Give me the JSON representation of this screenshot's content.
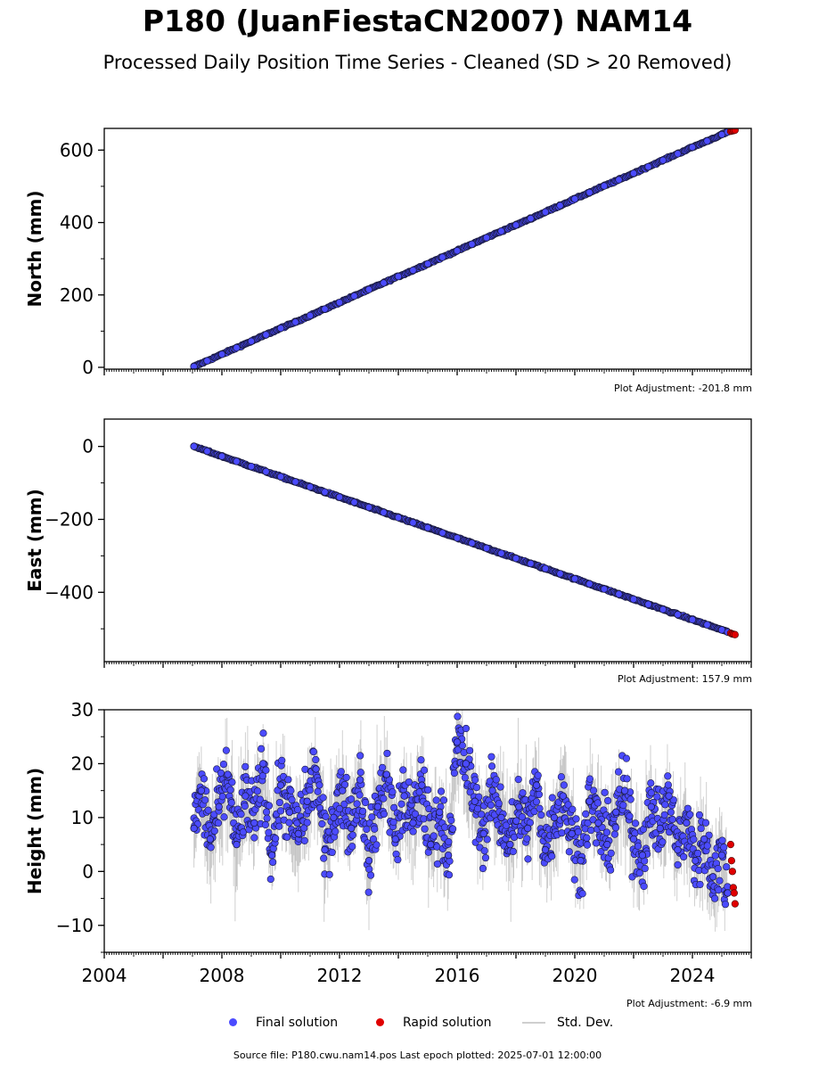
{
  "title": "P180 (JuanFiestaCN2007) NAM14",
  "subtitle": "Processed Daily Position Time Series - Cleaned (SD > 20 Removed)",
  "source_text": "Source file: P180.cwu.nam14.pos  Last epoch plotted: 2025-07-01 12:00:00",
  "legend": {
    "final_label": "Final solution",
    "rapid_label": "Rapid solution",
    "std_label": "Std. Dev."
  },
  "colors": {
    "final": "#4b4bff",
    "final_edge": "#1a1a40",
    "rapid": "#e00000",
    "std": "#c8c8c8"
  },
  "chart_data": [
    {
      "type": "scatter",
      "ylabel": "North (mm)",
      "plot_adjustment": "Plot Adjustment: -201.8 mm",
      "xlim": [
        2004.0,
        2026.0
      ],
      "ylim": [
        -5,
        660
      ],
      "yticks": [
        0,
        200,
        400,
        600
      ],
      "ytick_labels": [
        "0",
        "200",
        "400",
        "600"
      ],
      "show_xtick_labels": false,
      "series": [
        {
          "name": "Final solution",
          "x": [
            2007.05,
            2007.5,
            2008.0,
            2008.5,
            2009.0,
            2009.5,
            2010.0,
            2010.5,
            2011.0,
            2011.5,
            2012.0,
            2012.5,
            2013.0,
            2013.5,
            2014.0,
            2014.5,
            2015.0,
            2015.5,
            2016.0,
            2016.5,
            2017.0,
            2017.5,
            2018.0,
            2018.5,
            2019.0,
            2019.5,
            2020.0,
            2020.5,
            2021.0,
            2021.5,
            2022.0,
            2022.5,
            2023.0,
            2023.5,
            2024.0,
            2024.5,
            2025.0,
            2025.2
          ],
          "y": [
            2,
            18,
            36,
            54,
            72,
            90,
            108,
            125,
            143,
            161,
            179,
            197,
            215,
            233,
            251,
            268,
            286,
            304,
            322,
            340,
            358,
            376,
            393,
            411,
            429,
            447,
            465,
            483,
            501,
            518,
            536,
            554,
            572,
            590,
            608,
            625,
            643,
            650
          ]
        },
        {
          "name": "Rapid solution",
          "x": [
            2025.3,
            2025.35,
            2025.4,
            2025.45
          ],
          "y": [
            652,
            653,
            654,
            655
          ]
        }
      ]
    },
    {
      "type": "scatter",
      "ylabel": "East (mm)",
      "plot_adjustment": "Plot Adjustment: 157.9 mm",
      "xlim": [
        2004.0,
        2026.0
      ],
      "ylim": [
        -590,
        75
      ],
      "yticks": [
        0,
        -200,
        -400
      ],
      "ytick_labels": [
        "0",
        "−200",
        "−400"
      ],
      "show_xtick_labels": false,
      "series": [
        {
          "name": "Final solution",
          "x": [
            2007.05,
            2007.5,
            2008.0,
            2008.5,
            2009.0,
            2009.5,
            2010.0,
            2010.5,
            2011.0,
            2011.5,
            2012.0,
            2012.5,
            2013.0,
            2013.5,
            2014.0,
            2014.5,
            2015.0,
            2015.5,
            2016.0,
            2016.5,
            2017.0,
            2017.5,
            2018.0,
            2018.5,
            2019.0,
            2019.5,
            2020.0,
            2020.5,
            2021.0,
            2021.5,
            2022.0,
            2022.5,
            2023.0,
            2023.5,
            2024.0,
            2024.5,
            2025.0,
            2025.2
          ],
          "y": [
            0,
            -13,
            -27,
            -41,
            -55,
            -69,
            -83,
            -97,
            -111,
            -125,
            -139,
            -153,
            -167,
            -181,
            -195,
            -209,
            -223,
            -237,
            -251,
            -265,
            -279,
            -293,
            -307,
            -321,
            -335,
            -349,
            -363,
            -377,
            -391,
            -405,
            -419,
            -433,
            -447,
            -461,
            -475,
            -489,
            -503,
            -509
          ]
        },
        {
          "name": "Rapid solution",
          "x": [
            2025.3,
            2025.35,
            2025.4,
            2025.45
          ],
          "y": [
            -512,
            -514,
            -515,
            -516
          ]
        }
      ]
    },
    {
      "type": "scatter",
      "ylabel": "Height (mm)",
      "plot_adjustment": "Plot Adjustment: -6.9 mm",
      "xlim": [
        2004.0,
        2026.0
      ],
      "ylim": [
        -15,
        30
      ],
      "yticks": [
        30,
        20,
        10,
        0,
        -10
      ],
      "ytick_labels": [
        "30",
        "20",
        "10",
        "0",
        "−10"
      ],
      "show_xtick_labels": true,
      "xticks": [
        2004,
        2008,
        2012,
        2016,
        2020,
        2024
      ],
      "xtick_labels": [
        "2004",
        "2008",
        "2012",
        "2016",
        "2020",
        "2024"
      ],
      "series": [
        {
          "name": "Final solution",
          "x": [
            2007.05,
            2007.3,
            2007.6,
            2007.9,
            2008.2,
            2008.5,
            2008.8,
            2009.1,
            2009.4,
            2009.7,
            2010.0,
            2010.3,
            2010.6,
            2010.9,
            2011.2,
            2011.5,
            2011.8,
            2012.1,
            2012.4,
            2012.7,
            2013.0,
            2013.3,
            2013.6,
            2013.9,
            2014.2,
            2014.5,
            2014.8,
            2015.1,
            2015.4,
            2015.7,
            2016.0,
            2016.3,
            2016.6,
            2016.9,
            2017.2,
            2017.5,
            2017.8,
            2018.1,
            2018.4,
            2018.7,
            2019.0,
            2019.3,
            2019.6,
            2019.9,
            2020.2,
            2020.5,
            2020.8,
            2021.1,
            2021.4,
            2021.7,
            2022.0,
            2022.3,
            2022.6,
            2022.9,
            2023.2,
            2023.5,
            2023.8,
            2024.1,
            2024.4,
            2024.7,
            2025.0,
            2025.2
          ],
          "y": [
            8,
            15,
            6,
            12,
            18,
            5,
            14,
            9,
            20,
            3,
            16,
            11,
            7,
            13,
            19,
            4,
            10,
            15,
            8,
            17,
            2,
            12,
            18,
            6,
            14,
            9,
            16,
            5,
            11,
            3,
            24,
            20,
            13,
            7,
            15,
            10,
            5,
            12,
            8,
            16,
            4,
            10,
            14,
            7,
            2,
            13,
            9,
            5,
            11,
            15,
            6,
            3,
            12,
            8,
            14,
            4,
            9,
            2,
            6,
            -1,
            3,
            -4
          ],
          "y_range_note": ""
        },
        {
          "name": "Rapid solution",
          "x": [
            2025.3,
            2025.33,
            2025.36,
            2025.39,
            2025.42,
            2025.45
          ],
          "y": [
            5,
            2,
            0,
            -3,
            -4,
            -6
          ]
        }
      ]
    }
  ]
}
